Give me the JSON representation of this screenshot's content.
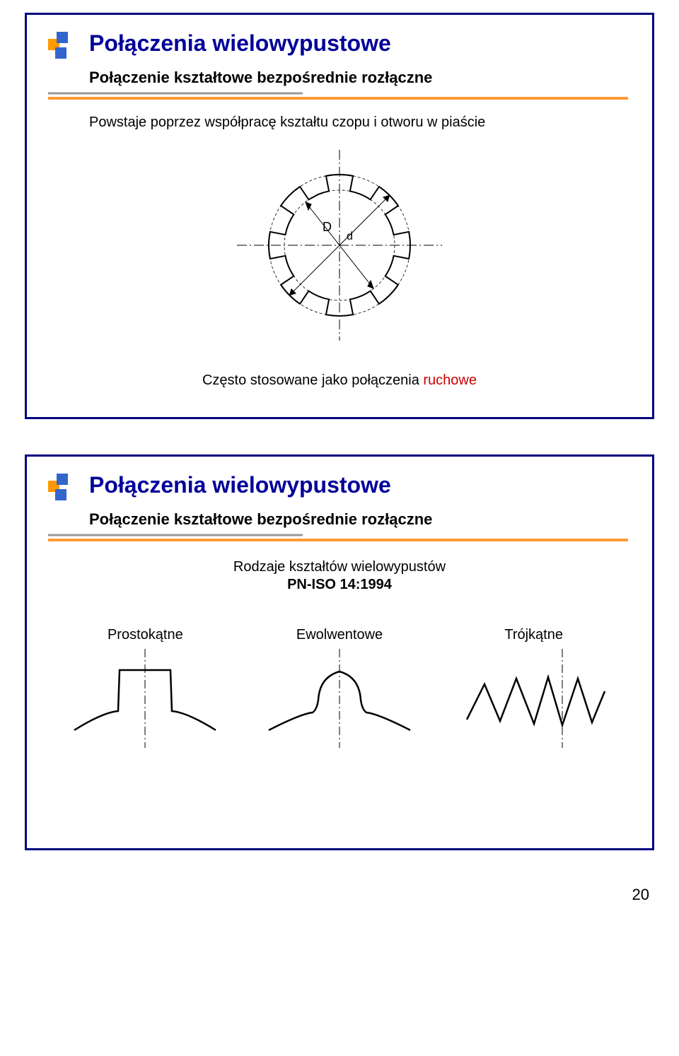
{
  "page_number": "20",
  "colors": {
    "slide_border": "#000080",
    "title": "#000099",
    "accent": "#cc0000",
    "text": "#000000",
    "bullet_orange": "#ff9900",
    "bullet_blue": "#3366cc",
    "divider_orange": "#ff9933",
    "divider_gray": "#999999"
  },
  "slide1": {
    "title": "Połączenia wielowypustowe",
    "subtitle": "Połączenie kształtowe bezpośrednie rozłączne",
    "body": "Powstaje poprzez współpracę kształtu czopu i otworu w piaście",
    "caption_prefix": "Często stosowane jako połączenia ",
    "caption_accent": "ruchowe",
    "diagram": {
      "label_D": "D",
      "label_d": "d",
      "teeth": 8,
      "outer_r": 100,
      "inner_r": 78,
      "tooth_half_angle_deg": 11
    }
  },
  "slide2": {
    "title": "Połączenia wielowypustowe",
    "subtitle": "Połączenie kształtowe bezpośrednie rozłączne",
    "line1": "Rodzaje kształtów wielowypustów",
    "line2": "PN-ISO 14:1994",
    "types": {
      "rect": "Prostokątne",
      "inv": "Ewolwentowe",
      "tri": "Trójkątne"
    }
  }
}
